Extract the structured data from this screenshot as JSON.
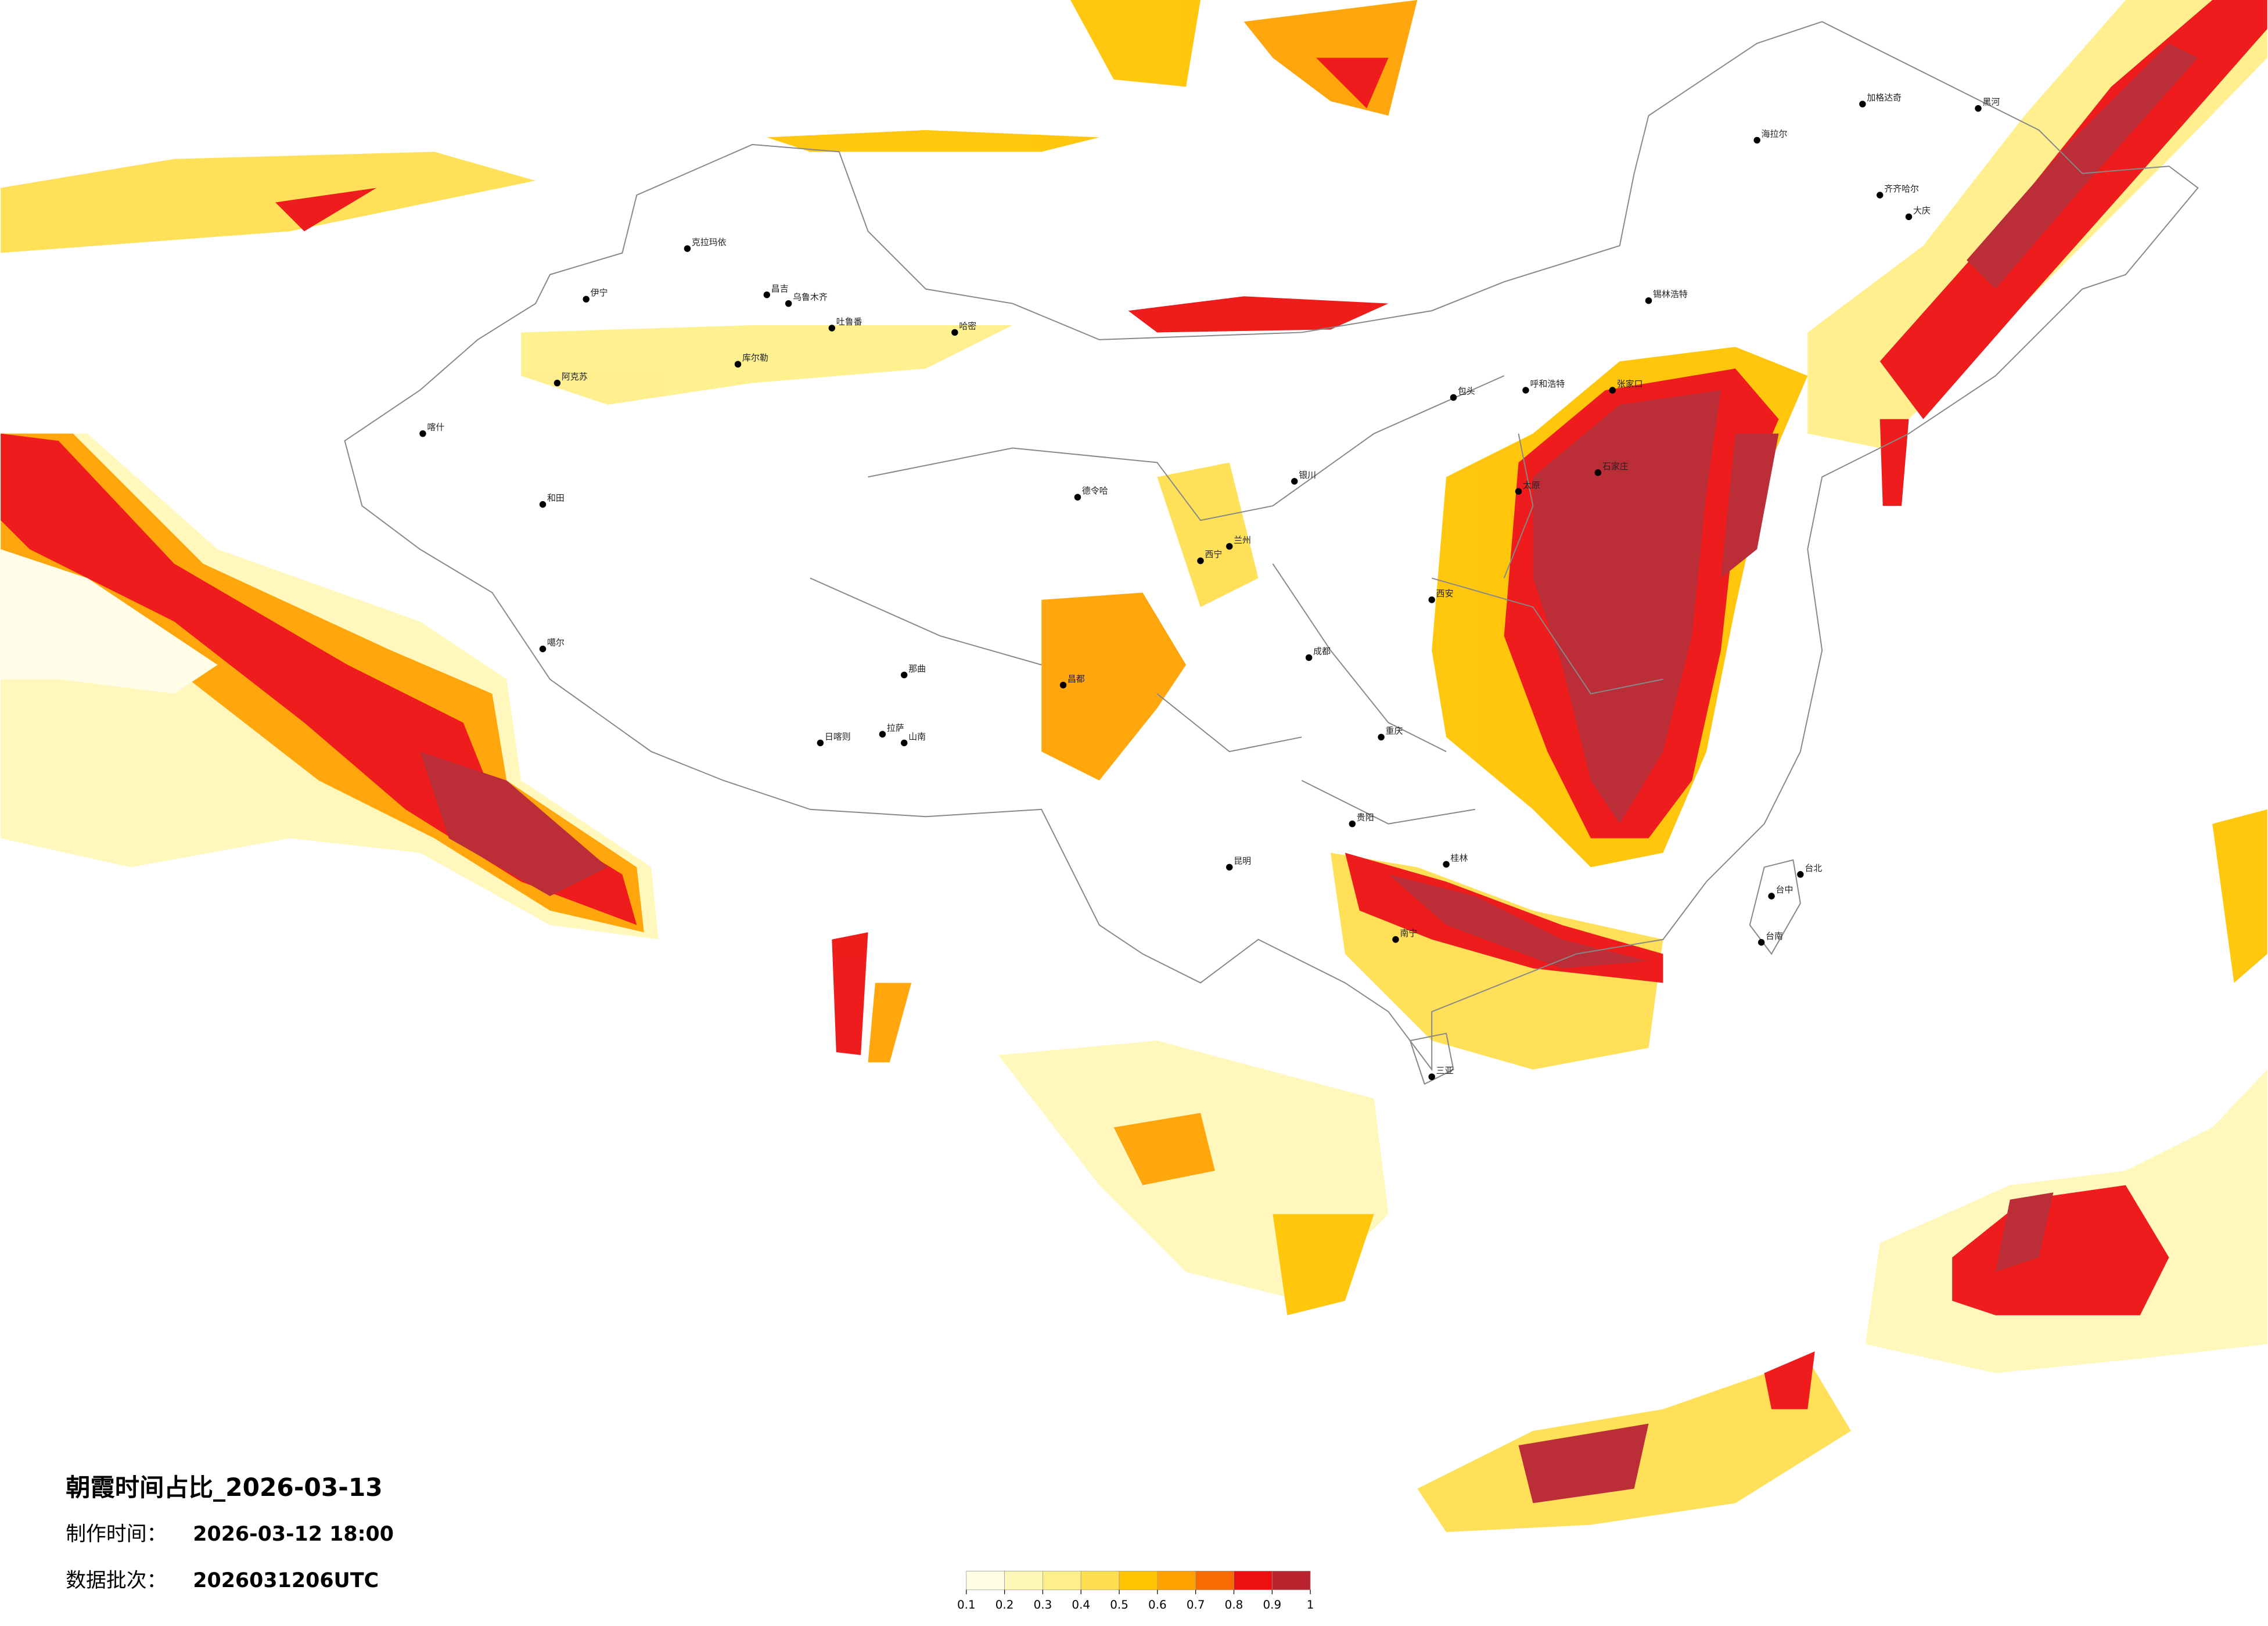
{
  "title": "朝霞时间占比_2026-03-13",
  "made_time": {
    "label": "制作时间：",
    "value": "2026-03-12 18:00"
  },
  "batch": {
    "label": "数据批次：",
    "value": "2026031206UTC"
  },
  "colorbar": {
    "ticks": [
      0.1,
      0.2,
      0.3,
      0.4,
      0.5,
      0.6,
      0.7,
      0.8,
      0.9,
      1
    ],
    "colors": [
      "#fffde6",
      "#fff7b8",
      "#ffef8a",
      "#ffdf50",
      "#ffc400",
      "#ffa200",
      "#f76b00",
      "#ee1010",
      "#b8232e"
    ]
  },
  "cities": [
    "克拉玛依",
    "伊宁",
    "昌吉",
    "乌鲁木齐",
    "吐鲁番",
    "哈密",
    "阿克苏",
    "库尔勒",
    "喀什",
    "和田",
    "噶尔",
    "日喀则",
    "拉萨",
    "山南",
    "那曲",
    "昌都",
    "德令哈",
    "西宁",
    "兰州",
    "银川",
    "呼和浩特",
    "包头",
    "张家口",
    "石家庄",
    "太原",
    "西安",
    "成都",
    "重庆",
    "贵阳",
    "昆明",
    "南宁",
    "桂林",
    "海拉尔",
    "齐齐哈尔",
    "大庆",
    "锡林浩特",
    "黑河",
    "加格达奇",
    "台北",
    "台中",
    "台南",
    "三亚"
  ]
}
